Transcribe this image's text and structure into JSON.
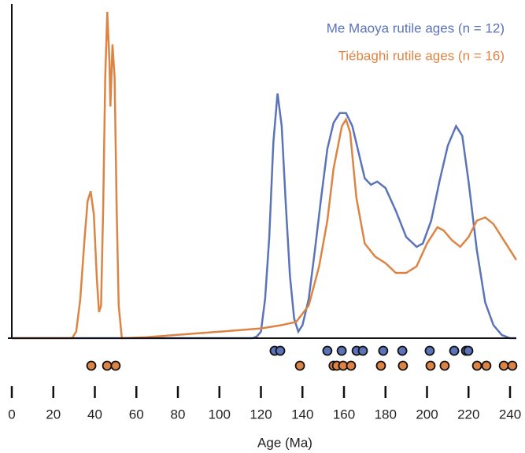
{
  "chart_data": {
    "type": "line",
    "xlabel": "Age (Ma)",
    "xlim": [
      0,
      243
    ],
    "ylim": [
      0,
      1
    ],
    "xticks": [
      0,
      20,
      40,
      60,
      80,
      100,
      120,
      140,
      160,
      180,
      200,
      220,
      240
    ],
    "legend": "upper right",
    "series": [
      {
        "name": "Me Maoya rutile ages (n = 12)",
        "color": "#5b73b8",
        "x": [
          0,
          116,
          118,
          120,
          122,
          124,
          126,
          128,
          130,
          132,
          134,
          136,
          138,
          140,
          143,
          146,
          149,
          152,
          155,
          158,
          161,
          164,
          167,
          170,
          173,
          176,
          180,
          185,
          190,
          195,
          198,
          202,
          206,
          210,
          214,
          217,
          220,
          224,
          228,
          232,
          236,
          240,
          243
        ],
        "values": [
          0,
          0,
          0.005,
          0.02,
          0.12,
          0.31,
          0.6,
          0.75,
          0.65,
          0.41,
          0.19,
          0.06,
          0.02,
          0.04,
          0.12,
          0.27,
          0.43,
          0.58,
          0.66,
          0.69,
          0.69,
          0.65,
          0.57,
          0.49,
          0.47,
          0.48,
          0.46,
          0.39,
          0.31,
          0.28,
          0.29,
          0.36,
          0.48,
          0.59,
          0.65,
          0.62,
          0.48,
          0.27,
          0.11,
          0.04,
          0.01,
          0,
          0
        ],
        "ages": [
          126.6,
          129.3,
          152.0,
          158.9,
          166.1,
          169.1,
          178.9,
          188.1,
          201.3,
          213.1,
          218.8,
          219.9
        ]
      },
      {
        "name": "Tiébaghi rutile ages (n = 16)",
        "color": "#dd8444",
        "x": [
          0,
          29,
          31,
          33,
          35,
          36.5,
          38,
          39.5,
          41,
          42,
          43,
          44,
          45,
          46,
          47,
          47.5,
          48.5,
          49.5,
          50.5,
          51.5,
          53,
          65,
          100,
          120,
          130,
          137,
          143,
          148,
          152,
          155,
          159,
          161,
          163,
          166,
          170,
          175,
          180,
          185,
          190,
          195,
          200,
          205,
          208,
          212,
          216,
          220,
          224,
          228,
          232,
          236,
          240,
          243
        ],
        "values": [
          0,
          0,
          0.02,
          0.12,
          0.3,
          0.42,
          0.45,
          0.38,
          0.18,
          0.08,
          0.1,
          0.4,
          0.8,
          1.0,
          0.85,
          0.71,
          0.9,
          0.8,
          0.4,
          0.1,
          0.0,
          0.003,
          0.02,
          0.03,
          0.04,
          0.05,
          0.1,
          0.22,
          0.36,
          0.52,
          0.65,
          0.67,
          0.63,
          0.43,
          0.29,
          0.25,
          0.23,
          0.2,
          0.2,
          0.22,
          0.29,
          0.34,
          0.33,
          0.3,
          0.28,
          0.31,
          0.36,
          0.37,
          0.35,
          0.31,
          0.27,
          0.24
        ],
        "ages": [
          38.3,
          45.9,
          50.0,
          138.8,
          155.0,
          156.6,
          159.6,
          163.4,
          177.8,
          188.4,
          201.7,
          208.5,
          224.1,
          228.6,
          237.0,
          241.1
        ]
      }
    ]
  }
}
